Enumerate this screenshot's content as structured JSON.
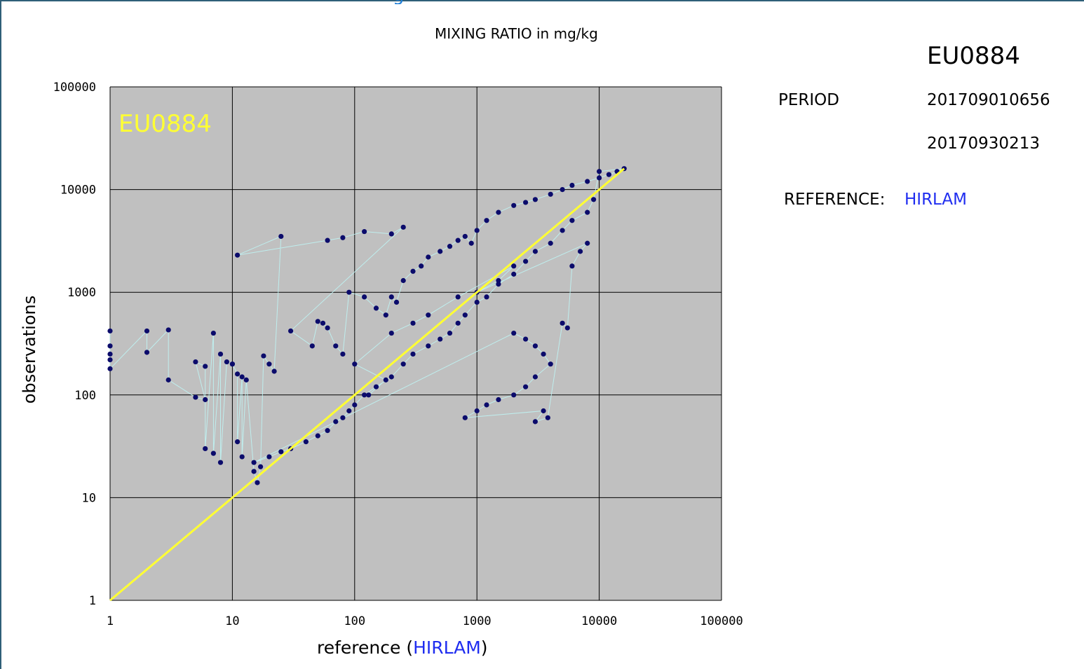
{
  "page": {
    "partial_title_glyph": "g"
  },
  "header": {
    "station_id": "EU0884",
    "period_label": "PERIOD",
    "period_start": "201709010656",
    "period_end": "20170930213",
    "reference_label": "REFERENCE:",
    "reference_model": "HIRLAM"
  },
  "chart_data": {
    "type": "scatter",
    "title": "MIXING RATIO in mg/kg",
    "xlabel_prefix": "reference (",
    "xlabel_model": "HIRLAM",
    "xlabel_suffix": ")",
    "ylabel": "observations",
    "inset_label": "EU0884",
    "xscale": "log",
    "yscale": "log",
    "xlim": [
      1,
      100000
    ],
    "ylim": [
      1,
      100000
    ],
    "x_ticks": [
      "1",
      "10",
      "100",
      "1000",
      "10000",
      "100000"
    ],
    "y_ticks": [
      "1",
      "10",
      "100",
      "1000",
      "10000",
      "100000"
    ],
    "grid": true,
    "colors": {
      "plot_bg": "#c0c0c0",
      "points": "#0b0b6b",
      "connector": "#bff3f3",
      "reference_line": "#ffff33",
      "inset_label": "#ffff33",
      "model_text": "#1f2df0"
    },
    "reference_line": {
      "name": "1:1",
      "x": [
        1,
        16000
      ],
      "y": [
        1,
        16000
      ]
    },
    "series": [
      {
        "name": "observations",
        "points": [
          [
            1,
            420
          ],
          [
            1,
            300
          ],
          [
            1,
            250
          ],
          [
            1,
            220
          ],
          [
            1,
            180
          ],
          [
            2,
            420
          ],
          [
            2,
            260
          ],
          [
            3,
            430
          ],
          [
            3,
            140
          ],
          [
            5,
            95
          ],
          [
            6,
            90
          ],
          [
            5,
            210
          ],
          [
            6,
            190
          ],
          [
            6,
            30
          ],
          [
            7,
            400
          ],
          [
            7,
            27
          ],
          [
            8,
            250
          ],
          [
            8,
            22
          ],
          [
            9,
            210
          ],
          [
            10,
            200
          ],
          [
            10,
            200
          ],
          [
            11,
            160
          ],
          [
            11,
            35
          ],
          [
            12,
            150
          ],
          [
            12,
            25
          ],
          [
            13,
            140
          ],
          [
            15,
            18
          ],
          [
            16,
            14
          ],
          [
            17,
            20
          ],
          [
            18,
            240
          ],
          [
            20,
            200
          ],
          [
            22,
            170
          ],
          [
            25,
            3500
          ],
          [
            11,
            2300
          ],
          [
            60,
            3200
          ],
          [
            80,
            3400
          ],
          [
            120,
            3900
          ],
          [
            200,
            3700
          ],
          [
            250,
            4300
          ],
          [
            30,
            420
          ],
          [
            45,
            300
          ],
          [
            50,
            520
          ],
          [
            55,
            500
          ],
          [
            60,
            450
          ],
          [
            70,
            300
          ],
          [
            80,
            250
          ],
          [
            90,
            1000
          ],
          [
            120,
            900
          ],
          [
            150,
            700
          ],
          [
            180,
            600
          ],
          [
            200,
            900
          ],
          [
            220,
            800
          ],
          [
            250,
            1300
          ],
          [
            300,
            1600
          ],
          [
            350,
            1800
          ],
          [
            400,
            2200
          ],
          [
            500,
            2500
          ],
          [
            600,
            2800
          ],
          [
            700,
            3200
          ],
          [
            800,
            3500
          ],
          [
            900,
            3000
          ],
          [
            1000,
            4000
          ],
          [
            1200,
            5000
          ],
          [
            1500,
            6000
          ],
          [
            2000,
            7000
          ],
          [
            2500,
            7500
          ],
          [
            3000,
            8000
          ],
          [
            4000,
            9000
          ],
          [
            5000,
            10000
          ],
          [
            6000,
            11000
          ],
          [
            8000,
            12000
          ],
          [
            10000,
            13000
          ],
          [
            12000,
            14000
          ],
          [
            14000,
            15000
          ],
          [
            16000,
            16000
          ],
          [
            10000,
            15000
          ],
          [
            9000,
            8000
          ],
          [
            8000,
            6000
          ],
          [
            6000,
            5000
          ],
          [
            5000,
            4000
          ],
          [
            4000,
            3000
          ],
          [
            3000,
            2500
          ],
          [
            2500,
            2000
          ],
          [
            2000,
            1500
          ],
          [
            1500,
            1200
          ],
          [
            1200,
            900
          ],
          [
            1000,
            800
          ],
          [
            800,
            600
          ],
          [
            700,
            500
          ],
          [
            600,
            400
          ],
          [
            500,
            350
          ],
          [
            400,
            300
          ],
          [
            300,
            250
          ],
          [
            250,
            200
          ],
          [
            200,
            150
          ],
          [
            150,
            120
          ],
          [
            120,
            100
          ],
          [
            100,
            80
          ],
          [
            90,
            70
          ],
          [
            80,
            60
          ],
          [
            70,
            55
          ],
          [
            60,
            45
          ],
          [
            50,
            40
          ],
          [
            40,
            35
          ],
          [
            30,
            30
          ],
          [
            25,
            28
          ],
          [
            20,
            25
          ],
          [
            15,
            22
          ],
          [
            2000,
            400
          ],
          [
            2500,
            350
          ],
          [
            3000,
            300
          ],
          [
            3500,
            250
          ],
          [
            4000,
            200
          ],
          [
            3000,
            150
          ],
          [
            2500,
            120
          ],
          [
            2000,
            100
          ],
          [
            1500,
            90
          ],
          [
            1200,
            80
          ],
          [
            1000,
            70
          ],
          [
            800,
            60
          ],
          [
            3500,
            70
          ],
          [
            3000,
            55
          ],
          [
            3800,
            60
          ],
          [
            5000,
            500
          ],
          [
            5500,
            450
          ],
          [
            6000,
            1800
          ],
          [
            7000,
            2500
          ],
          [
            8000,
            3000
          ],
          [
            1000,
            1000
          ],
          [
            1500,
            1300
          ],
          [
            2000,
            1800
          ],
          [
            700,
            900
          ],
          [
            400,
            600
          ],
          [
            300,
            500
          ],
          [
            200,
            400
          ],
          [
            100,
            200
          ],
          [
            180,
            140
          ],
          [
            130,
            100
          ]
        ]
      }
    ]
  }
}
